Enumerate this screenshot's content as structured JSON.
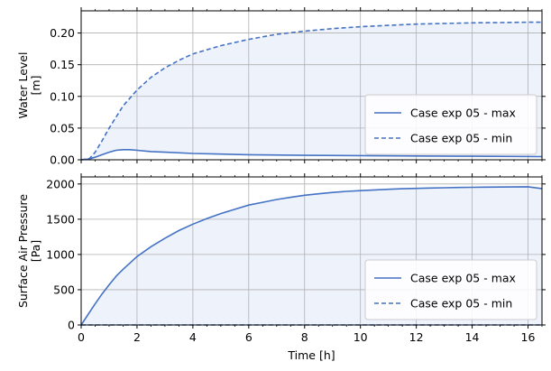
{
  "chart_data": [
    {
      "type": "line",
      "id": "top",
      "ylabel_lines": [
        "Water Level",
        "[m]"
      ],
      "xlim": [
        0,
        16.5
      ],
      "ylim": [
        0,
        0.235
      ],
      "yticks": [
        0.0,
        0.05,
        0.1,
        0.15,
        0.2
      ],
      "ytick_labels": [
        "0.00",
        "0.05",
        "0.10",
        "0.15",
        "0.20"
      ],
      "xticks": [
        0,
        2,
        4,
        6,
        8,
        10,
        12,
        14,
        16
      ],
      "xtick_labels": [],
      "grid": true,
      "legend": "lower-right",
      "fill_between": true,
      "series": [
        {
          "name": "Case exp 05 - max",
          "style": "solid",
          "x": [
            0,
            0.25,
            0.5,
            0.75,
            1.0,
            1.25,
            1.5,
            1.75,
            2.0,
            2.5,
            3.0,
            4.0,
            5.0,
            6.0,
            8.0,
            10.0,
            12.0,
            14.0,
            16.5
          ],
          "y": [
            0.0,
            0.001,
            0.004,
            0.008,
            0.012,
            0.015,
            0.016,
            0.016,
            0.015,
            0.013,
            0.012,
            0.01,
            0.009,
            0.008,
            0.007,
            0.0065,
            0.006,
            0.0055,
            0.005
          ]
        },
        {
          "name": "Case exp 05 - min",
          "style": "dashed",
          "x": [
            0,
            0.3,
            0.5,
            0.75,
            1.0,
            1.5,
            2.0,
            2.5,
            3.0,
            3.5,
            4.0,
            5.0,
            6.0,
            7.0,
            8.0,
            9.0,
            10.0,
            11.0,
            12.0,
            13.0,
            14.0,
            15.0,
            16.0,
            16.5
          ],
          "y": [
            0.0,
            0.002,
            0.012,
            0.03,
            0.05,
            0.085,
            0.11,
            0.13,
            0.145,
            0.157,
            0.167,
            0.18,
            0.19,
            0.198,
            0.203,
            0.207,
            0.21,
            0.212,
            0.214,
            0.215,
            0.216,
            0.2165,
            0.217,
            0.217
          ]
        }
      ],
      "fill_color": "#eef2fb",
      "line_color": "#4472c4"
    },
    {
      "type": "line",
      "id": "bottom",
      "ylabel_lines": [
        "Surface Air Pressure",
        "[Pa]"
      ],
      "xlabel": "Time [h]",
      "xlim": [
        0,
        16.5
      ],
      "ylim": [
        0,
        2100
      ],
      "yticks": [
        0,
        500,
        1000,
        1500,
        2000
      ],
      "ytick_labels": [
        "0",
        "500",
        "1000",
        "1500",
        "2000"
      ],
      "xticks": [
        0,
        2,
        4,
        6,
        8,
        10,
        12,
        14,
        16
      ],
      "xtick_labels": [
        "0",
        "2",
        "4",
        "6",
        "8",
        "10",
        "12",
        "14",
        "16"
      ],
      "grid": true,
      "legend": "lower-right",
      "fill_between": true,
      "series": [
        {
          "name": "Case exp 05 - max",
          "style": "solid",
          "x": [
            0,
            0.25,
            0.5,
            0.75,
            1.0,
            1.25,
            1.5,
            1.75,
            2.0,
            2.5,
            3.0,
            3.5,
            4.0,
            4.5,
            5.0,
            5.5,
            6.0,
            6.5,
            7.0,
            7.5,
            8.0,
            8.5,
            9.0,
            9.5,
            10.0,
            10.5,
            11.0,
            11.5,
            12.0,
            12.5,
            13.0,
            13.5,
            14.0,
            14.5,
            15.0,
            15.5,
            16.0,
            16.5
          ],
          "y": [
            0,
            150,
            300,
            440,
            570,
            690,
            790,
            880,
            970,
            1110,
            1230,
            1340,
            1430,
            1510,
            1580,
            1640,
            1700,
            1740,
            1780,
            1810,
            1840,
            1860,
            1880,
            1895,
            1905,
            1915,
            1925,
            1932,
            1938,
            1942,
            1946,
            1950,
            1953,
            1955,
            1957,
            1958,
            1960,
            1935
          ]
        },
        {
          "name": "Case exp 05 - min",
          "style": "dashed",
          "x": [
            0,
            16.5
          ],
          "y": [
            0,
            0
          ]
        }
      ],
      "fill_color": "#eef2fb",
      "line_color": "#4472c4"
    }
  ]
}
